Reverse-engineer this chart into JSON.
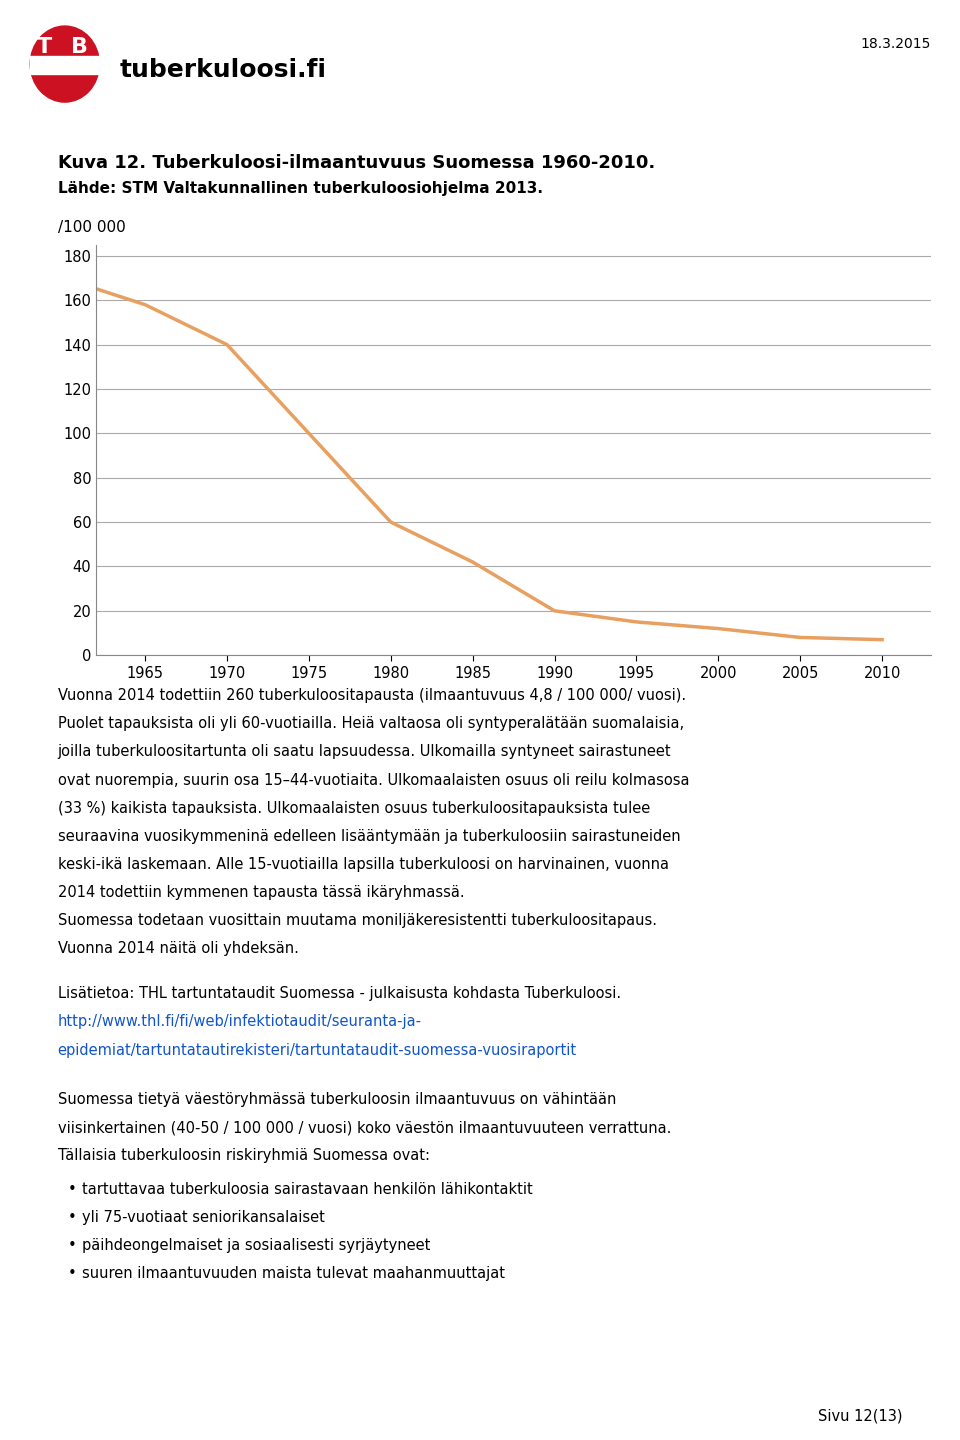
{
  "date_label": "18.3.2015",
  "site_name": "tuberkuloosi.fi",
  "chart_title": "Kuva 12. Tuberkuloosi-ilmaantuvuus Suomessa 1960-2010.",
  "chart_subtitle": "Lähde: STM Valtakunnallinen tuberkuloosiohjelma 2013.",
  "ylabel": "/100 000",
  "years": [
    1960,
    1965,
    1970,
    1975,
    1980,
    1985,
    1990,
    1995,
    2000,
    2005,
    2010
  ],
  "values": [
    170,
    158,
    140,
    100,
    60,
    42,
    20,
    15,
    12,
    8,
    7
  ],
  "line_color": "#E8A060",
  "line_width": 2.5,
  "yticks": [
    0,
    20,
    40,
    60,
    80,
    100,
    120,
    140,
    160,
    180
  ],
  "xticks": [
    1965,
    1970,
    1975,
    1980,
    1985,
    1990,
    1995,
    2000,
    2005,
    2010
  ],
  "ylim": [
    0,
    185
  ],
  "xlim": [
    1962,
    2013
  ],
  "grid_color": "#AAAAAA",
  "body_text_1": "Vuonna 2014 todettiin 260 tuberkuloositapausta (ilmaantuvuus 4,8 / 100 000/ vuosi). Puolet tapauksista oli yli 60-vuotiailla. Heistä valtaosa oli syntyperalätään suomalaisia, joilla tuberkuloositartunta oli saatu lapsuudessa. Ulkomailla syntyneet sairastuneet ovat nuorempia, suurin osa 15–44-vuotiaita. Ulkomaalaisten osuus oli reilu kolmasosa (33 %) kaikista tapauksista. Ulkomaalaisten osuus tuberkuloositapauksista tulee seuraavina vuosikymmeninä edelleen lisääntymään ja tuberkuloosiin sairastuneiden keski-ikä laskemaan. Alle 15-vuotiailla lapsilla tuberkuloosi on harvinainen, vuonna 2014 todettiin kymmenen tapausta tässä ikäryhmassä.\nSuomessa todetaan vuosittain muutama moniljäkeresistentti tuberkuloositapaus. Vuonna 2014 näitä oli yhdeksän.",
  "additional_text_1": "Lisätietoa: THL tartuntataudit Suomessa - julkaisusta kohdasta Tuberkuloosi.",
  "link_line1": "http://www.thl.fi/fi/web/infektiotaudit/seuranta-ja-",
  "link_line2": "epidemiat/tartuntatautirekisteri/tartuntataudit-suomessa-vuosiraportit",
  "body_text_2": "Suomessa tietyä väestöryhmässä tuberkuloosin ilmaantuvuus on vähintään viisinkertainen (40-50 / 100 000 / vuosi) koko väestön ilmaantuvuuteen verrattuna. Tällaisia tuberkuloosin riskiryhmiä Suomessa ovat:",
  "bullet_points": [
    "tartuttavaa tuberkuloosia sairastavaan henkilön lähikontaktit",
    "yli 75-vuotiaat seniorikansalaiset",
    "päihdeongelmaiset ja sosiaalisesti syrjäytyneet",
    "suuren ilmaantuvuuden maista tulevat maahanmuuttajat"
  ],
  "page_label": "Sivu 12(13)",
  "bg_color": "#FFFFFF",
  "text_color": "#000000",
  "link_color": "#1155CC"
}
